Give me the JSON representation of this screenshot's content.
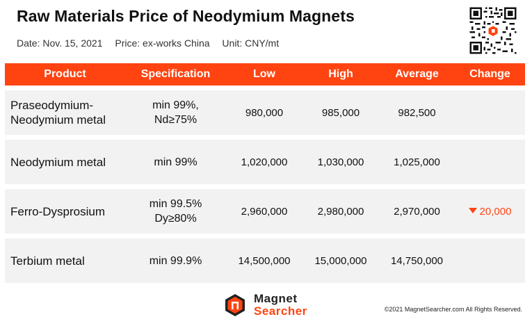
{
  "title": "Raw Materials Price of Neodymium Magnets",
  "meta": {
    "date": "Date: Nov. 15, 2021",
    "price": "Price: ex-works China",
    "unit": "Unit: CNY/mt"
  },
  "table": {
    "headers": [
      "Product",
      "Specification",
      "Low",
      "High",
      "Average",
      "Change"
    ],
    "rows": [
      {
        "product": [
          "Praseodymium-",
          "Neodymium metal"
        ],
        "spec": [
          "min 99%,",
          "Nd≥75%"
        ],
        "low": "980,000",
        "high": "985,000",
        "average": "982,500",
        "change": ""
      },
      {
        "product": [
          "Neodymium metal"
        ],
        "spec": [
          "min 99%"
        ],
        "low": "1,020,000",
        "high": "1,030,000",
        "average": "1,025,000",
        "change": ""
      },
      {
        "product": [
          "Ferro-Dysprosium"
        ],
        "spec": [
          "min 99.5%",
          "Dy≥80%"
        ],
        "low": "2,960,000",
        "high": "2,980,000",
        "average": "2,970,000",
        "change": "20,000",
        "change_direction": "down"
      },
      {
        "product": [
          "Terbium metal"
        ],
        "spec": [
          "min 99.9%"
        ],
        "low": "14,500,000",
        "high": "15,000,000",
        "average": "14,750,000",
        "change": ""
      }
    ]
  },
  "logo": {
    "line1": "Magnet",
    "line2": "Searcher"
  },
  "copyright": "©2021 MagnetSearcher.com All Rights Reserved.",
  "colors": {
    "accent": "#ff4411",
    "row_bg": "#f2f2f2",
    "header_text": "#ffffff"
  },
  "icons": {
    "qr": "qr-code-icon",
    "logo": "magnet-searcher-logo-icon",
    "change_down": "triangle-down-icon"
  }
}
